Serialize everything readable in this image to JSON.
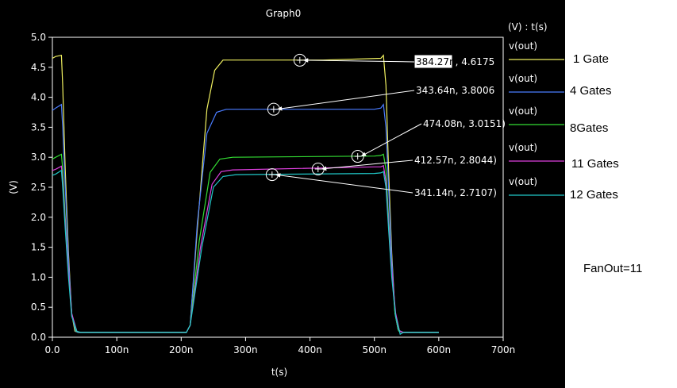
{
  "chart_data": {
    "type": "line",
    "title": "Graph0",
    "xlabel": "t(s)",
    "ylabel": "(V)",
    "legend_header": "(V) : t(s)",
    "xlim": [
      0,
      700
    ],
    "ylim": [
      0,
      5
    ],
    "x_ticks": [
      "0.0",
      "100n",
      "200n",
      "300n",
      "400n",
      "500n",
      "600n",
      "700n"
    ],
    "y_ticks": [
      "0.0",
      "0.5",
      "1.0",
      "1.5",
      "2.0",
      "2.5",
      "3.0",
      "3.5",
      "4.0",
      "4.5",
      "5.0"
    ],
    "grid": false,
    "legend_position": "right",
    "series": [
      {
        "name": "v(out)",
        "color": "#f0f060",
        "points": [
          [
            0,
            4.65
          ],
          [
            5,
            4.68
          ],
          [
            14,
            4.7
          ],
          [
            16,
            4.2
          ],
          [
            20,
            2.8
          ],
          [
            25,
            1.4
          ],
          [
            30,
            0.4
          ],
          [
            35,
            0.1
          ],
          [
            40,
            0.08
          ],
          [
            100,
            0.08
          ],
          [
            208,
            0.08
          ],
          [
            214,
            0.2
          ],
          [
            225,
            1.8
          ],
          [
            240,
            3.8
          ],
          [
            252,
            4.45
          ],
          [
            265,
            4.62
          ],
          [
            420,
            4.62
          ],
          [
            510,
            4.65
          ],
          [
            514,
            4.7
          ],
          [
            518,
            4.2
          ],
          [
            522,
            2.8
          ],
          [
            527,
            1.4
          ],
          [
            532,
            0.4
          ],
          [
            537,
            0.12
          ],
          [
            545,
            0.08
          ],
          [
            600,
            0.08
          ]
        ]
      },
      {
        "name": "v(out)",
        "color": "#4a7cff",
        "points": [
          [
            0,
            3.78
          ],
          [
            5,
            3.82
          ],
          [
            14,
            3.88
          ],
          [
            16,
            3.5
          ],
          [
            20,
            2.5
          ],
          [
            25,
            1.3
          ],
          [
            30,
            0.4
          ],
          [
            36,
            0.1
          ],
          [
            40,
            0.08
          ],
          [
            100,
            0.08
          ],
          [
            208,
            0.08
          ],
          [
            214,
            0.2
          ],
          [
            225,
            1.9
          ],
          [
            240,
            3.4
          ],
          [
            255,
            3.75
          ],
          [
            270,
            3.8
          ],
          [
            500,
            3.8
          ],
          [
            510,
            3.82
          ],
          [
            514,
            3.88
          ],
          [
            518,
            3.5
          ],
          [
            522,
            2.5
          ],
          [
            527,
            1.3
          ],
          [
            532,
            0.4
          ],
          [
            537,
            0.12
          ],
          [
            545,
            0.08
          ],
          [
            600,
            0.08
          ]
        ]
      },
      {
        "name": "v(out)",
        "color": "#33dd33",
        "points": [
          [
            0,
            2.97
          ],
          [
            5,
            3.0
          ],
          [
            14,
            3.05
          ],
          [
            16,
            2.8
          ],
          [
            20,
            2.0
          ],
          [
            25,
            1.1
          ],
          [
            30,
            0.4
          ],
          [
            37,
            0.1
          ],
          [
            42,
            0.08
          ],
          [
            100,
            0.08
          ],
          [
            208,
            0.08
          ],
          [
            214,
            0.2
          ],
          [
            228,
            1.6
          ],
          [
            245,
            2.75
          ],
          [
            260,
            2.97
          ],
          [
            280,
            3.0
          ],
          [
            500,
            3.02
          ],
          [
            510,
            3.03
          ],
          [
            514,
            3.05
          ],
          [
            518,
            2.8
          ],
          [
            522,
            2.0
          ],
          [
            527,
            1.1
          ],
          [
            532,
            0.4
          ],
          [
            538,
            0.1
          ],
          [
            545,
            0.08
          ],
          [
            600,
            0.08
          ]
        ]
      },
      {
        "name": "v(out)",
        "color": "#e040e0",
        "points": [
          [
            0,
            2.78
          ],
          [
            5,
            2.8
          ],
          [
            14,
            2.85
          ],
          [
            16,
            2.6
          ],
          [
            20,
            1.9
          ],
          [
            25,
            1.1
          ],
          [
            30,
            0.4
          ],
          [
            38,
            0.1
          ],
          [
            43,
            0.08
          ],
          [
            100,
            0.08
          ],
          [
            208,
            0.08
          ],
          [
            214,
            0.2
          ],
          [
            230,
            1.5
          ],
          [
            248,
            2.55
          ],
          [
            262,
            2.76
          ],
          [
            280,
            2.79
          ],
          [
            500,
            2.84
          ],
          [
            510,
            2.84
          ],
          [
            514,
            2.86
          ],
          [
            518,
            2.6
          ],
          [
            522,
            1.9
          ],
          [
            527,
            1.1
          ],
          [
            533,
            0.4
          ],
          [
            539,
            0.1
          ],
          [
            545,
            0.08
          ],
          [
            600,
            0.08
          ]
        ]
      },
      {
        "name": "v(out)",
        "color": "#20c8c8",
        "points": [
          [
            0,
            2.7
          ],
          [
            5,
            2.72
          ],
          [
            14,
            2.78
          ],
          [
            16,
            2.5
          ],
          [
            20,
            1.8
          ],
          [
            25,
            1.0
          ],
          [
            30,
            0.35
          ],
          [
            38,
            0.1
          ],
          [
            44,
            0.08
          ],
          [
            100,
            0.08
          ],
          [
            208,
            0.08
          ],
          [
            214,
            0.2
          ],
          [
            232,
            1.5
          ],
          [
            250,
            2.5
          ],
          [
            265,
            2.68
          ],
          [
            285,
            2.71
          ],
          [
            500,
            2.73
          ],
          [
            510,
            2.74
          ],
          [
            514,
            2.76
          ],
          [
            518,
            2.5
          ],
          [
            522,
            1.8
          ],
          [
            527,
            1.0
          ],
          [
            533,
            0.35
          ],
          [
            540,
            0.05
          ],
          [
            545,
            0.08
          ],
          [
            600,
            0.08
          ]
        ]
      }
    ],
    "cursors": [
      {
        "label": "384.27n, 4.6175",
        "x": 384.27,
        "y": 4.6175,
        "highlight": "384.27n"
      },
      {
        "label": "343.64n, 3.8006",
        "x": 343.64,
        "y": 3.8006
      },
      {
        "label": "474.08n, 3.0151)",
        "x": 474.08,
        "y": 3.0151
      },
      {
        "label": "412.57n, 2.8044)",
        "x": 412.57,
        "y": 2.8044
      },
      {
        "label": "341.14n, 2.7107)",
        "x": 341.14,
        "y": 2.7107
      }
    ]
  },
  "side_panel": {
    "series_labels": [
      "1 Gate",
      "4 Gates",
      "8Gates",
      "11 Gates",
      "12 Gates"
    ],
    "fanout": "FanOut=11"
  }
}
